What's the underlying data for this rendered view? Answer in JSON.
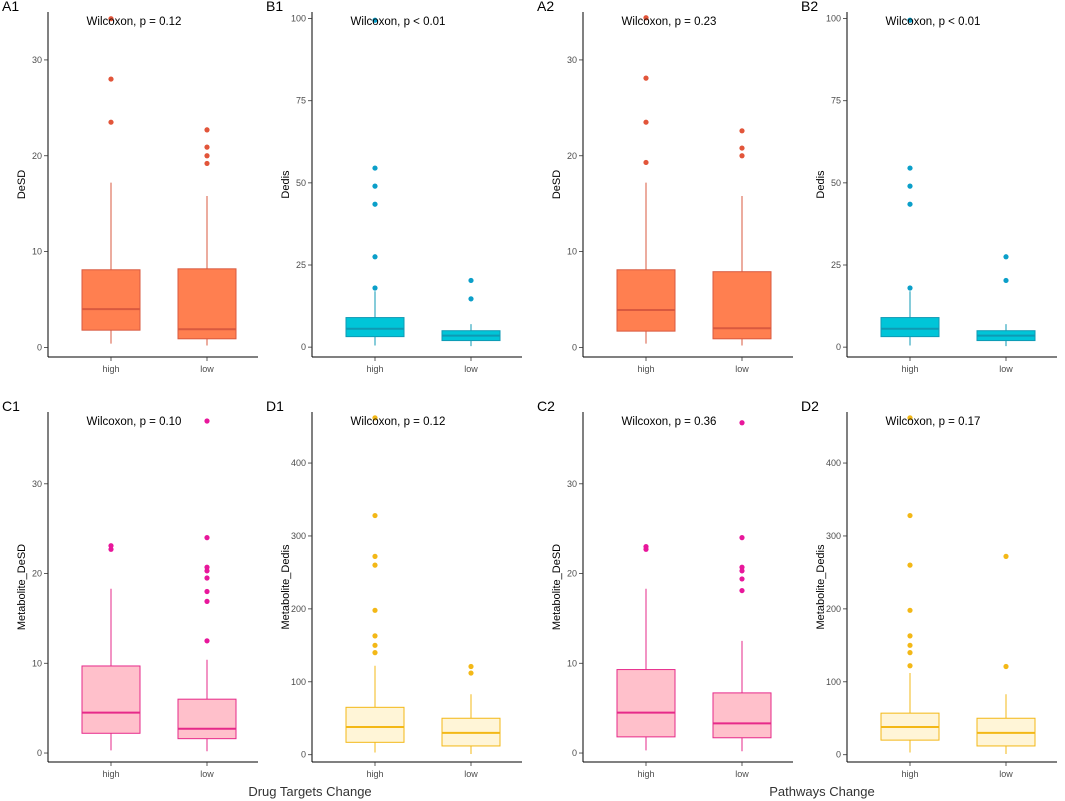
{
  "figure": {
    "group_titles": [
      "Drug Targets Change",
      "Pathways Change"
    ]
  },
  "chart_data": [
    {
      "id": "A1",
      "type": "box",
      "test": "Wilcoxon, p = 0.12",
      "ylabel": "DeSD",
      "categories": [
        "high",
        "low"
      ],
      "ylim": [
        -1,
        35
      ],
      "yticks": [
        0,
        10,
        20,
        30
      ],
      "yticklabels": [
        "0",
        "10",
        "20",
        "30"
      ],
      "fill": "#FF7F50",
      "line": "#D9593F",
      "point": "#E2553A",
      "boxes": [
        {
          "q1": 1.8,
          "median": 4.0,
          "q3": 8.1,
          "lo": 0.4,
          "hi": 17.2,
          "out": [
            23.5,
            28.0,
            34.3
          ]
        },
        {
          "q1": 0.9,
          "median": 1.9,
          "q3": 8.2,
          "lo": 0.2,
          "hi": 15.8,
          "out": [
            19.2,
            20.0,
            20.9,
            22.7
          ]
        }
      ]
    },
    {
      "id": "B1",
      "type": "box",
      "test": "Wilcoxon, p < 0.01",
      "ylabel": "Dedis",
      "categories": [
        "high",
        "low"
      ],
      "ylim": [
        -3,
        102
      ],
      "yticks": [
        0,
        25,
        50,
        75,
        100
      ],
      "yticklabels": [
        "0",
        "25",
        "50",
        "75",
        "100"
      ],
      "fill": "#00C5D8",
      "line": "#0E9AB4",
      "point": "#0B9FC9",
      "boxes": [
        {
          "q1": 3.2,
          "median": 5.6,
          "q3": 9.0,
          "lo": 0.5,
          "hi": 17.0,
          "out": [
            18.0,
            27.5,
            43.5,
            49.0,
            54.5,
            99.5
          ]
        },
        {
          "q1": 2.0,
          "median": 3.5,
          "q3": 5.0,
          "lo": 0.3,
          "hi": 7.0,
          "out": [
            14.7,
            20.3
          ]
        }
      ]
    },
    {
      "id": "A2",
      "type": "box",
      "test": "Wilcoxon, p = 0.23",
      "ylabel": "DeSD",
      "categories": [
        "high",
        "low"
      ],
      "ylim": [
        -1,
        35
      ],
      "yticks": [
        0,
        10,
        20,
        30
      ],
      "yticklabels": [
        "0",
        "10",
        "20",
        "30"
      ],
      "fill": "#FF7F50",
      "line": "#D9593F",
      "point": "#E2553A",
      "boxes": [
        {
          "q1": 1.7,
          "median": 3.9,
          "q3": 8.1,
          "lo": 0.4,
          "hi": 17.2,
          "out": [
            19.3,
            23.5,
            28.1,
            34.4
          ]
        },
        {
          "q1": 0.9,
          "median": 2.0,
          "q3": 7.9,
          "lo": 0.2,
          "hi": 15.8,
          "out": [
            20.0,
            20.8,
            22.6
          ]
        }
      ]
    },
    {
      "id": "B2",
      "type": "box",
      "test": "Wilcoxon, p < 0.01",
      "ylabel": "Dedis",
      "categories": [
        "high",
        "low"
      ],
      "ylim": [
        -3,
        102
      ],
      "yticks": [
        0,
        25,
        50,
        75,
        100
      ],
      "yticklabels": [
        "0",
        "25",
        "50",
        "75",
        "100"
      ],
      "fill": "#00C5D8",
      "line": "#0E9AB4",
      "point": "#0B9FC9",
      "boxes": [
        {
          "q1": 3.2,
          "median": 5.6,
          "q3": 9.0,
          "lo": 0.5,
          "hi": 17.0,
          "out": [
            18.0,
            43.5,
            49.0,
            54.5,
            99.5
          ]
        },
        {
          "q1": 2.0,
          "median": 3.5,
          "q3": 5.0,
          "lo": 0.3,
          "hi": 7.0,
          "out": [
            20.3,
            27.5
          ]
        }
      ]
    },
    {
      "id": "C1",
      "type": "box",
      "test": "Wilcoxon, p = 0.10",
      "ylabel": "Metabolite_DeSD",
      "categories": [
        "high",
        "low"
      ],
      "ylim": [
        -1,
        38
      ],
      "yticks": [
        0,
        10,
        20,
        30
      ],
      "yticklabels": [
        "0",
        "10",
        "20",
        "30"
      ],
      "fill": "#FFC0CB",
      "line": "#E62A8A",
      "point": "#E8179B",
      "boxes": [
        {
          "q1": 2.2,
          "median": 4.5,
          "q3": 9.7,
          "lo": 0.3,
          "hi": 18.3,
          "out": [
            22.7,
            23.1
          ]
        },
        {
          "q1": 1.6,
          "median": 2.7,
          "q3": 6.0,
          "lo": 0.2,
          "hi": 10.4,
          "out": [
            12.5,
            16.9,
            18.0,
            19.5,
            20.3,
            20.7,
            24.0,
            37.0
          ]
        }
      ]
    },
    {
      "id": "D1",
      "type": "box",
      "test": "Wilcoxon, p = 0.12",
      "ylabel": "Metabolite_Dedis",
      "categories": [
        "high",
        "low"
      ],
      "ylim": [
        -10,
        470
      ],
      "yticks": [
        0,
        100,
        200,
        300,
        400
      ],
      "yticklabels": [
        "0",
        "100",
        "200",
        "300",
        "400"
      ],
      "fill": "#FFF5D7",
      "line": "#F3B817",
      "point": "#F3B817",
      "boxes": [
        {
          "q1": 17,
          "median": 38,
          "q3": 65,
          "lo": 3,
          "hi": 122,
          "out": [
            140,
            150,
            163,
            198,
            260,
            272,
            328,
            462
          ]
        },
        {
          "q1": 12,
          "median": 30,
          "q3": 50,
          "lo": 1,
          "hi": 83,
          "out": [
            112,
            121
          ]
        }
      ]
    },
    {
      "id": "C2",
      "type": "box",
      "test": "Wilcoxon, p = 0.36",
      "ylabel": "Metabolite_DeSD",
      "categories": [
        "high",
        "low"
      ],
      "ylim": [
        -1,
        38
      ],
      "yticks": [
        0,
        10,
        20,
        30
      ],
      "yticklabels": [
        "0",
        "10",
        "20",
        "30"
      ],
      "fill": "#FFC0CB",
      "line": "#E62A8A",
      "point": "#E8179B",
      "boxes": [
        {
          "q1": 1.8,
          "median": 4.5,
          "q3": 9.3,
          "lo": 0.3,
          "hi": 18.3,
          "out": [
            22.7,
            23.0
          ]
        },
        {
          "q1": 1.7,
          "median": 3.3,
          "q3": 6.7,
          "lo": 0.2,
          "hi": 12.5,
          "out": [
            18.1,
            19.4,
            20.3,
            20.7,
            24.0,
            36.8
          ]
        }
      ]
    },
    {
      "id": "D2",
      "type": "box",
      "test": "Wilcoxon, p = 0.17",
      "ylabel": "Metabolite_Dedis",
      "categories": [
        "high",
        "low"
      ],
      "ylim": [
        -10,
        470
      ],
      "yticks": [
        0,
        100,
        200,
        300,
        400
      ],
      "yticklabels": [
        "0",
        "100",
        "200",
        "300",
        "400"
      ],
      "fill": "#FFF5D7",
      "line": "#F3B817",
      "point": "#F3B817",
      "boxes": [
        {
          "q1": 20,
          "median": 38,
          "q3": 57,
          "lo": 3,
          "hi": 112,
          "out": [
            122,
            140,
            150,
            163,
            198,
            260,
            328,
            462
          ]
        },
        {
          "q1": 12,
          "median": 30,
          "q3": 50,
          "lo": 1,
          "hi": 83,
          "out": [
            121,
            272
          ]
        }
      ]
    }
  ]
}
